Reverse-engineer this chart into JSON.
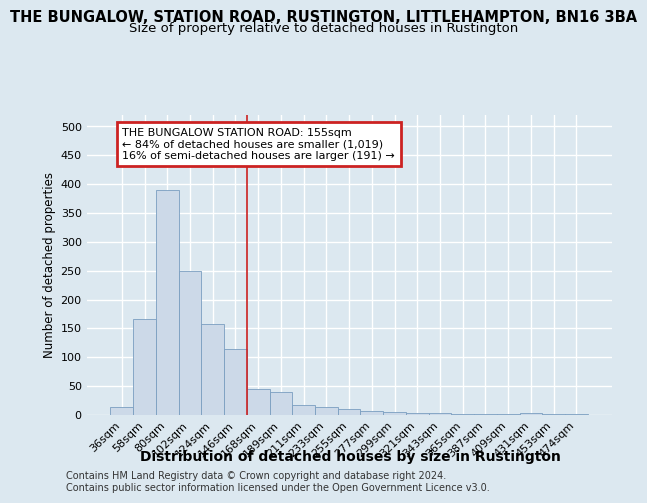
{
  "title": "THE BUNGALOW, STATION ROAD, RUSTINGTON, LITTLEHAMPTON, BN16 3BA",
  "subtitle": "Size of property relative to detached houses in Rustington",
  "xlabel": "Distribution of detached houses by size in Rustington",
  "ylabel": "Number of detached properties",
  "categories": [
    "36sqm",
    "58sqm",
    "80sqm",
    "102sqm",
    "124sqm",
    "146sqm",
    "168sqm",
    "189sqm",
    "211sqm",
    "233sqm",
    "255sqm",
    "277sqm",
    "299sqm",
    "321sqm",
    "343sqm",
    "365sqm",
    "387sqm",
    "409sqm",
    "431sqm",
    "453sqm",
    "474sqm"
  ],
  "values": [
    13,
    167,
    390,
    250,
    158,
    115,
    45,
    40,
    18,
    13,
    10,
    7,
    5,
    3,
    3,
    2,
    2,
    1,
    3,
    1,
    1
  ],
  "bar_color": "#ccd9e8",
  "bar_edge_color": "#7a9ec0",
  "vline_color": "#cc2222",
  "vline_pos": 5.5,
  "annotation_text": "THE BUNGALOW STATION ROAD: 155sqm\n← 84% of detached houses are smaller (1,019)\n16% of semi-detached houses are larger (191) →",
  "annotation_box_color": "#cc2222",
  "footer": "Contains HM Land Registry data © Crown copyright and database right 2024.\nContains public sector information licensed under the Open Government Licence v3.0.",
  "ylim": [
    0,
    520
  ],
  "yticks": [
    0,
    50,
    100,
    150,
    200,
    250,
    300,
    350,
    400,
    450,
    500
  ],
  "background_color": "#dce8f0",
  "plot_bg_color": "#dce8f0",
  "grid_color": "#ffffff",
  "title_fontsize": 10.5,
  "subtitle_fontsize": 9.5,
  "xlabel_fontsize": 10,
  "ylabel_fontsize": 8.5,
  "tick_fontsize": 8,
  "footer_fontsize": 7
}
